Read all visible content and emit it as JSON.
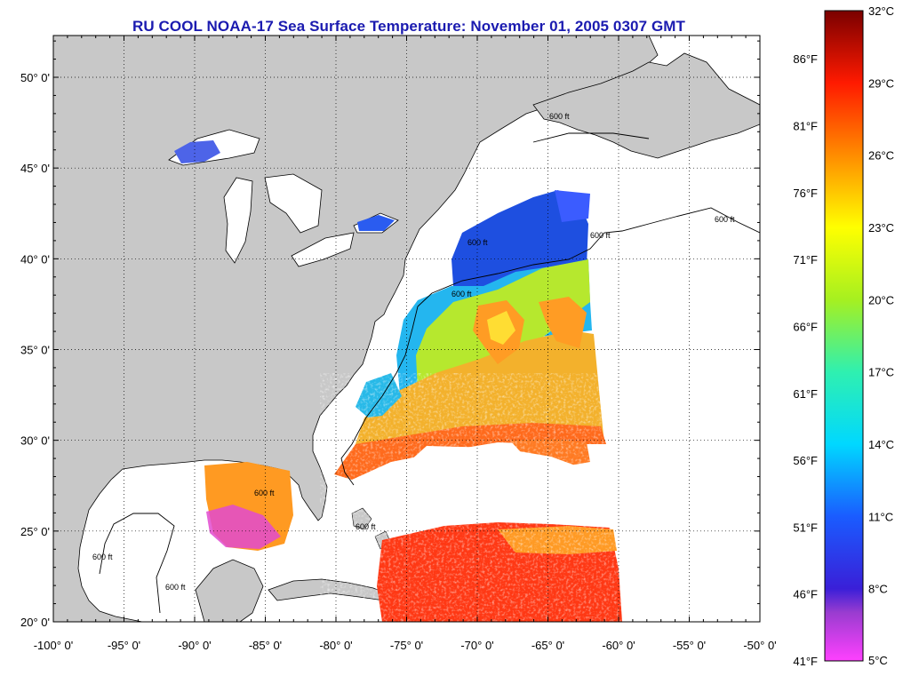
{
  "title": "RU COOL  NOAA-17  Sea Surface Temperature:  November 01, 2005 0307 GMT",
  "map": {
    "lon_range": [
      -100,
      -50
    ],
    "lat_range": [
      20,
      52.3
    ],
    "lat_ticks": [
      {
        "value": 50,
        "label": "50° 0'"
      },
      {
        "value": 45,
        "label": "45° 0'"
      },
      {
        "value": 40,
        "label": "40° 0'"
      },
      {
        "value": 35,
        "label": "35° 0'"
      },
      {
        "value": 30,
        "label": "30° 0'"
      },
      {
        "value": 25,
        "label": "25° 0'"
      },
      {
        "value": 20,
        "label": "20° 0'"
      }
    ],
    "lon_ticks": [
      {
        "value": -100,
        "label": "-100° 0'"
      },
      {
        "value": -95,
        "label": "-95° 0'"
      },
      {
        "value": -90,
        "label": "-90° 0'"
      },
      {
        "value": -85,
        "label": "-85° 0'"
      },
      {
        "value": -80,
        "label": "-80° 0'"
      },
      {
        "value": -75,
        "label": "-75° 0'"
      },
      {
        "value": -70,
        "label": "-70° 0'"
      },
      {
        "value": -65,
        "label": "-65° 0'"
      },
      {
        "value": -60,
        "label": "-60° 0'"
      },
      {
        "value": -55,
        "label": "-55° 0'"
      },
      {
        "value": -50,
        "label": "-50° 0'"
      }
    ],
    "grid": "dotted",
    "contour_label": "600 ft",
    "colors": {
      "land": "#c8c8c8",
      "ocean": "#ffffff",
      "cloud": "#ffffff",
      "coast": "#000000",
      "title": "#1b1bb0"
    }
  },
  "colorbar": {
    "range_c": [
      5,
      32
    ],
    "celsius_labels": [
      "32°C",
      "29°C",
      "26°C",
      "23°C",
      "20°C",
      "17°C",
      "14°C",
      "11°C",
      "8°C",
      "5°C"
    ],
    "celsius_values": [
      32,
      29,
      26,
      23,
      20,
      17,
      14,
      11,
      8,
      5
    ],
    "fahrenheit_labels": [
      "86°F",
      "81°F",
      "76°F",
      "71°F",
      "66°F",
      "61°F",
      "56°F",
      "51°F",
      "46°F",
      "41°F"
    ],
    "fahrenheit_values": [
      86,
      81,
      76,
      71,
      66,
      61,
      56,
      51,
      46,
      41
    ],
    "stops": [
      {
        "c": 5,
        "color": "#ff40ff"
      },
      {
        "c": 7,
        "color": "#9a3cd0"
      },
      {
        "c": 8,
        "color": "#3a1fd8"
      },
      {
        "c": 11,
        "color": "#1a5cff"
      },
      {
        "c": 14,
        "color": "#00d8ff"
      },
      {
        "c": 17,
        "color": "#2ff0b0"
      },
      {
        "c": 20,
        "color": "#a6f020"
      },
      {
        "c": 23,
        "color": "#ffff00"
      },
      {
        "c": 26,
        "color": "#ff8c00"
      },
      {
        "c": 29,
        "color": "#ff1a00"
      },
      {
        "c": 32,
        "color": "#7a0000"
      }
    ]
  }
}
